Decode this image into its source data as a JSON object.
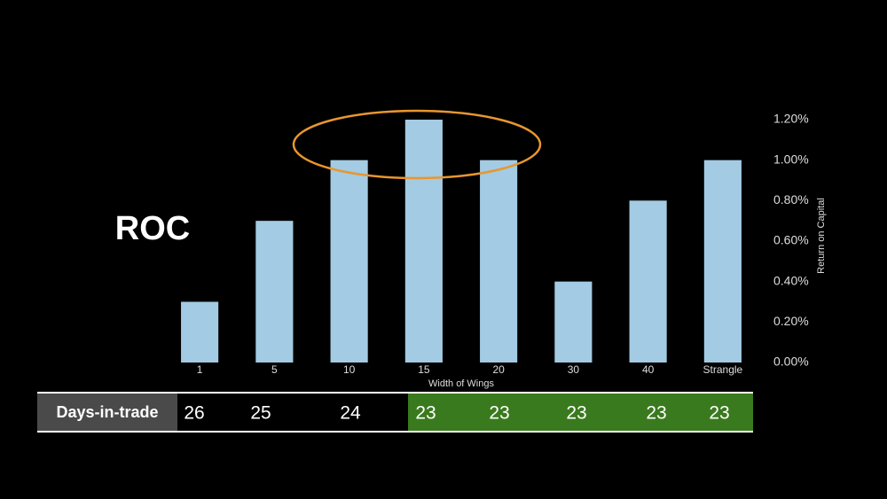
{
  "slide_label": "ROC",
  "chart_data": {
    "type": "bar",
    "x_label": "Width of Wings",
    "y_label": "Return on Capital",
    "categories": [
      "1",
      "5",
      "10",
      "15",
      "20",
      "30",
      "40",
      "Strangle"
    ],
    "values": [
      0.3,
      0.7,
      1.0,
      1.2,
      1.0,
      0.4,
      0.8,
      1.0
    ],
    "color": "#a3cbe3",
    "ylim": [
      0,
      1.2
    ],
    "yticks": [
      {
        "value": 0,
        "label": "0.00%"
      },
      {
        "value": 0.2,
        "label": "0.20%"
      },
      {
        "value": 0.4,
        "label": "0.40%"
      },
      {
        "value": 0.6,
        "label": "0.60%"
      },
      {
        "value": 0.8,
        "label": "0.80%"
      },
      {
        "value": 1.0,
        "label": "1.00%"
      },
      {
        "value": 1.2,
        "label": "1.20%"
      }
    ],
    "grid": false
  },
  "days_table": {
    "header": "Days-in-trade",
    "values": [
      26,
      25,
      24,
      23,
      23,
      23,
      23,
      23
    ]
  }
}
